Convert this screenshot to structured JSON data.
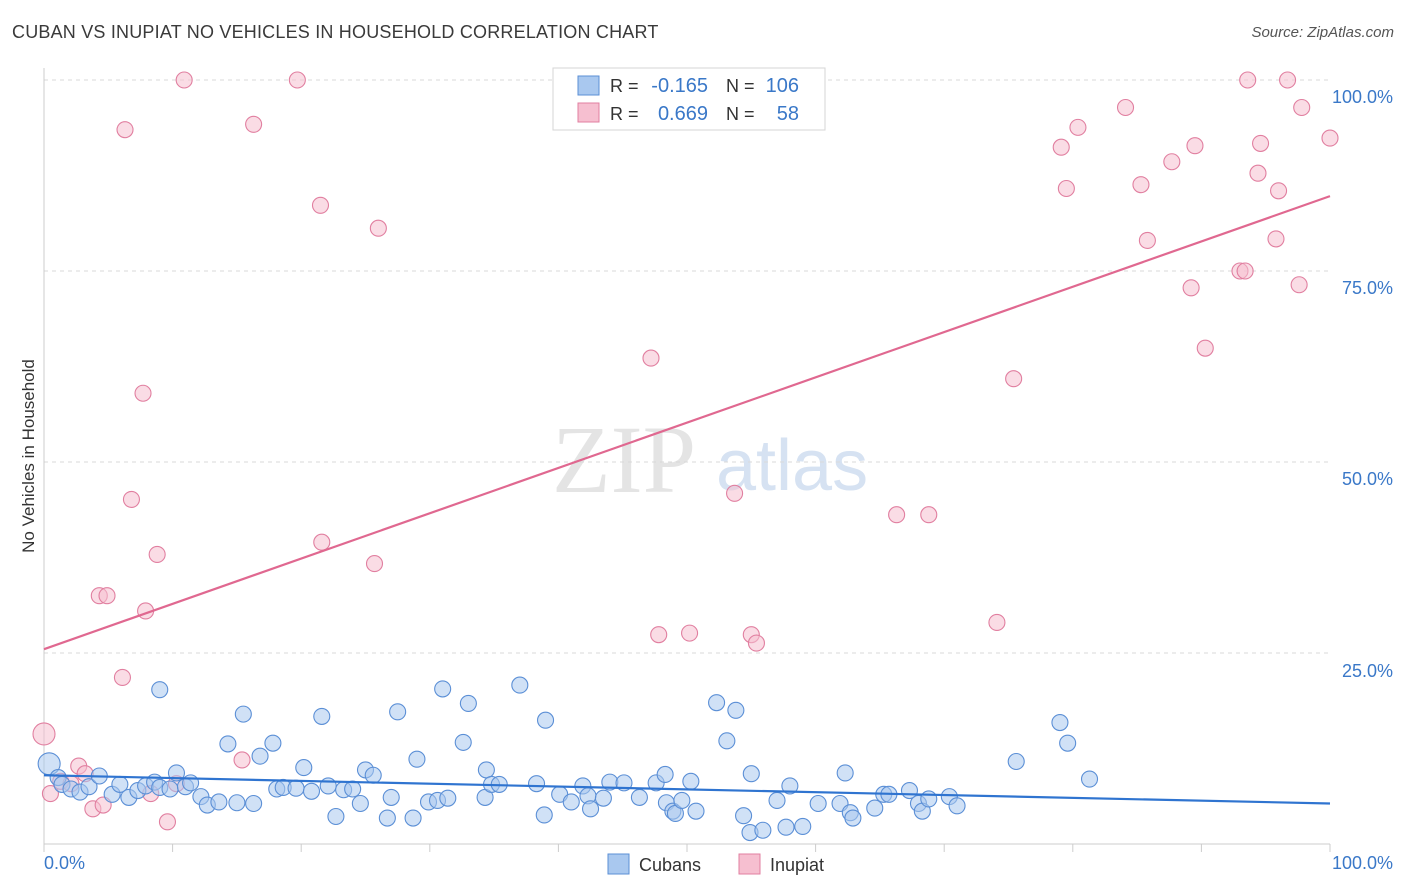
{
  "header": {
    "title": "CUBAN VS INUPIAT NO VEHICLES IN HOUSEHOLD CORRELATION CHART",
    "source": "Source: ZipAtlas.com"
  },
  "watermark": {
    "zip": "ZIP",
    "atlas": "atlas"
  },
  "legend": {
    "rows": [
      {
        "r_label": "R =",
        "r_value": "-0.165",
        "n_label": "N =",
        "n_value": "106"
      },
      {
        "r_label": "R =",
        "r_value": "0.669",
        "n_label": "N =",
        "n_value": "58"
      }
    ]
  },
  "bottom_legend": {
    "cubans": "Cubans",
    "inupiat": "Inupiat"
  },
  "colors": {
    "cubans_fill": "#a9c8ef",
    "cubans_stroke": "#5b8fd6",
    "cubans_line": "#2f74d0",
    "inupiat_fill": "#f6bfd0",
    "inupiat_stroke": "#e17fa0",
    "inupiat_line": "#e06890",
    "value_text": "#3a78c8",
    "grid": "#d9d9d9"
  },
  "chart_data": {
    "type": "scatter",
    "title": "CUBAN VS INUPIAT NO VEHICLES IN HOUSEHOLD CORRELATION CHART",
    "xlabel": "",
    "ylabel": "No Vehicles in Household",
    "xlim": [
      0,
      100
    ],
    "ylim": [
      0,
      100
    ],
    "x_tick_labels": [
      "0.0%",
      "100.0%"
    ],
    "y_ticks": [
      25,
      50,
      75,
      100
    ],
    "y_tick_labels": [
      "25.0%",
      "50.0%",
      "75.0%",
      "100.0%"
    ],
    "grid": true,
    "series": [
      {
        "name": "Cubans",
        "r": -0.165,
        "n": 106,
        "trend": {
          "x": [
            0,
            100
          ],
          "y": [
            9.0,
            5.3
          ]
        },
        "points": [
          [
            0.4,
            10.5
          ],
          [
            1.1,
            8.7
          ],
          [
            1.4,
            7.8
          ],
          [
            2.1,
            7.2
          ],
          [
            2.8,
            6.8
          ],
          [
            3.5,
            7.5
          ],
          [
            4.3,
            8.9
          ],
          [
            5.3,
            6.5
          ],
          [
            5.9,
            7.8
          ],
          [
            6.6,
            6.1
          ],
          [
            7.3,
            7.0
          ],
          [
            7.9,
            7.6
          ],
          [
            8.6,
            8.1
          ],
          [
            9.0,
            20.2
          ],
          [
            9.0,
            7.4
          ],
          [
            9.8,
            7.2
          ],
          [
            10.3,
            9.3
          ],
          [
            11.0,
            7.5
          ],
          [
            11.4,
            8.0
          ],
          [
            12.2,
            6.2
          ],
          [
            12.7,
            5.1
          ],
          [
            13.6,
            5.5
          ],
          [
            14.3,
            13.1
          ],
          [
            15.0,
            5.4
          ],
          [
            15.5,
            17.0
          ],
          [
            16.3,
            5.3
          ],
          [
            16.8,
            11.5
          ],
          [
            17.8,
            13.2
          ],
          [
            18.1,
            7.2
          ],
          [
            18.6,
            7.4
          ],
          [
            19.6,
            7.3
          ],
          [
            20.2,
            10.0
          ],
          [
            20.8,
            6.9
          ],
          [
            21.6,
            16.7
          ],
          [
            22.1,
            7.6
          ],
          [
            22.7,
            3.6
          ],
          [
            23.3,
            7.1
          ],
          [
            24.0,
            7.2
          ],
          [
            24.6,
            5.3
          ],
          [
            25.0,
            9.7
          ],
          [
            25.6,
            9.0
          ],
          [
            26.7,
            3.4
          ],
          [
            27.0,
            6.1
          ],
          [
            27.5,
            17.3
          ],
          [
            28.7,
            3.4
          ],
          [
            29.0,
            11.1
          ],
          [
            29.9,
            5.5
          ],
          [
            30.6,
            5.7
          ],
          [
            31.0,
            20.3
          ],
          [
            31.4,
            6.0
          ],
          [
            32.6,
            13.3
          ],
          [
            33.0,
            18.4
          ],
          [
            34.3,
            6.1
          ],
          [
            34.4,
            9.7
          ],
          [
            34.8,
            7.8
          ],
          [
            35.4,
            7.8
          ],
          [
            37.0,
            20.8
          ],
          [
            38.3,
            7.9
          ],
          [
            38.9,
            3.8
          ],
          [
            39.0,
            16.2
          ],
          [
            40.1,
            6.5
          ],
          [
            41.0,
            5.5
          ],
          [
            41.9,
            7.6
          ],
          [
            42.3,
            6.3
          ],
          [
            42.5,
            4.6
          ],
          [
            43.5,
            6.0
          ],
          [
            44.0,
            8.1
          ],
          [
            45.1,
            8.0
          ],
          [
            46.3,
            6.1
          ],
          [
            47.6,
            8.0
          ],
          [
            48.3,
            9.1
          ],
          [
            48.4,
            5.4
          ],
          [
            48.9,
            4.3
          ],
          [
            49.1,
            4.0
          ],
          [
            49.6,
            5.7
          ],
          [
            50.3,
            8.2
          ],
          [
            50.7,
            4.3
          ],
          [
            52.3,
            18.5
          ],
          [
            53.1,
            13.5
          ],
          [
            53.8,
            17.5
          ],
          [
            54.4,
            3.7
          ],
          [
            54.9,
            1.5
          ],
          [
            55.0,
            9.2
          ],
          [
            55.9,
            1.8
          ],
          [
            57.0,
            5.7
          ],
          [
            57.7,
            2.2
          ],
          [
            58.0,
            7.6
          ],
          [
            59.0,
            2.3
          ],
          [
            60.2,
            5.3
          ],
          [
            61.9,
            5.3
          ],
          [
            62.3,
            9.3
          ],
          [
            62.7,
            4.1
          ],
          [
            62.9,
            3.4
          ],
          [
            64.6,
            4.7
          ],
          [
            65.3,
            6.5
          ],
          [
            65.7,
            6.5
          ],
          [
            67.3,
            7.0
          ],
          [
            68.0,
            5.3
          ],
          [
            68.3,
            4.3
          ],
          [
            68.8,
            5.9
          ],
          [
            70.4,
            6.2
          ],
          [
            71.0,
            5.0
          ],
          [
            75.6,
            10.8
          ],
          [
            79.0,
            15.9
          ],
          [
            79.6,
            13.2
          ],
          [
            81.3,
            8.5
          ]
        ]
      },
      {
        "name": "Inupiat",
        "r": 0.669,
        "n": 58,
        "trend": {
          "x": [
            0,
            100
          ],
          "y": [
            25.5,
            84.8
          ]
        },
        "points": [
          [
            0.0,
            14.4
          ],
          [
            0.5,
            6.6
          ],
          [
            1.3,
            8.2
          ],
          [
            2.1,
            7.9
          ],
          [
            2.7,
            10.2
          ],
          [
            3.2,
            9.2
          ],
          [
            3.8,
            4.6
          ],
          [
            4.3,
            32.5
          ],
          [
            4.6,
            5.1
          ],
          [
            4.9,
            32.5
          ],
          [
            6.1,
            21.8
          ],
          [
            6.3,
            93.5
          ],
          [
            6.8,
            45.1
          ],
          [
            7.7,
            59.0
          ],
          [
            7.9,
            30.5
          ],
          [
            8.3,
            6.6
          ],
          [
            8.8,
            37.9
          ],
          [
            9.6,
            2.9
          ],
          [
            10.3,
            7.9
          ],
          [
            10.9,
            100.0
          ],
          [
            15.4,
            11.0
          ],
          [
            16.3,
            94.2
          ],
          [
            19.7,
            100.0
          ],
          [
            21.5,
            83.6
          ],
          [
            21.6,
            39.5
          ],
          [
            25.7,
            36.7
          ],
          [
            26.0,
            80.6
          ],
          [
            47.2,
            63.6
          ],
          [
            47.8,
            27.4
          ],
          [
            50.2,
            27.6
          ],
          [
            53.7,
            45.9
          ],
          [
            55.0,
            27.4
          ],
          [
            55.4,
            26.3
          ],
          [
            66.3,
            43.1
          ],
          [
            68.8,
            43.1
          ],
          [
            74.1,
            29.0
          ],
          [
            75.4,
            60.9
          ],
          [
            79.1,
            91.2
          ],
          [
            79.5,
            85.8
          ],
          [
            80.4,
            93.8
          ],
          [
            84.1,
            96.4
          ],
          [
            85.3,
            86.3
          ],
          [
            85.8,
            79.0
          ],
          [
            87.7,
            89.3
          ],
          [
            89.2,
            72.8
          ],
          [
            89.5,
            91.4
          ],
          [
            90.3,
            64.9
          ],
          [
            93.0,
            75.0
          ],
          [
            93.4,
            75.0
          ],
          [
            93.6,
            100.0
          ],
          [
            94.4,
            87.8
          ],
          [
            94.6,
            91.7
          ],
          [
            95.8,
            79.2
          ],
          [
            96.0,
            85.5
          ],
          [
            96.7,
            100.0
          ],
          [
            97.6,
            73.2
          ],
          [
            97.8,
            96.4
          ],
          [
            100.0,
            92.4
          ]
        ]
      }
    ]
  }
}
